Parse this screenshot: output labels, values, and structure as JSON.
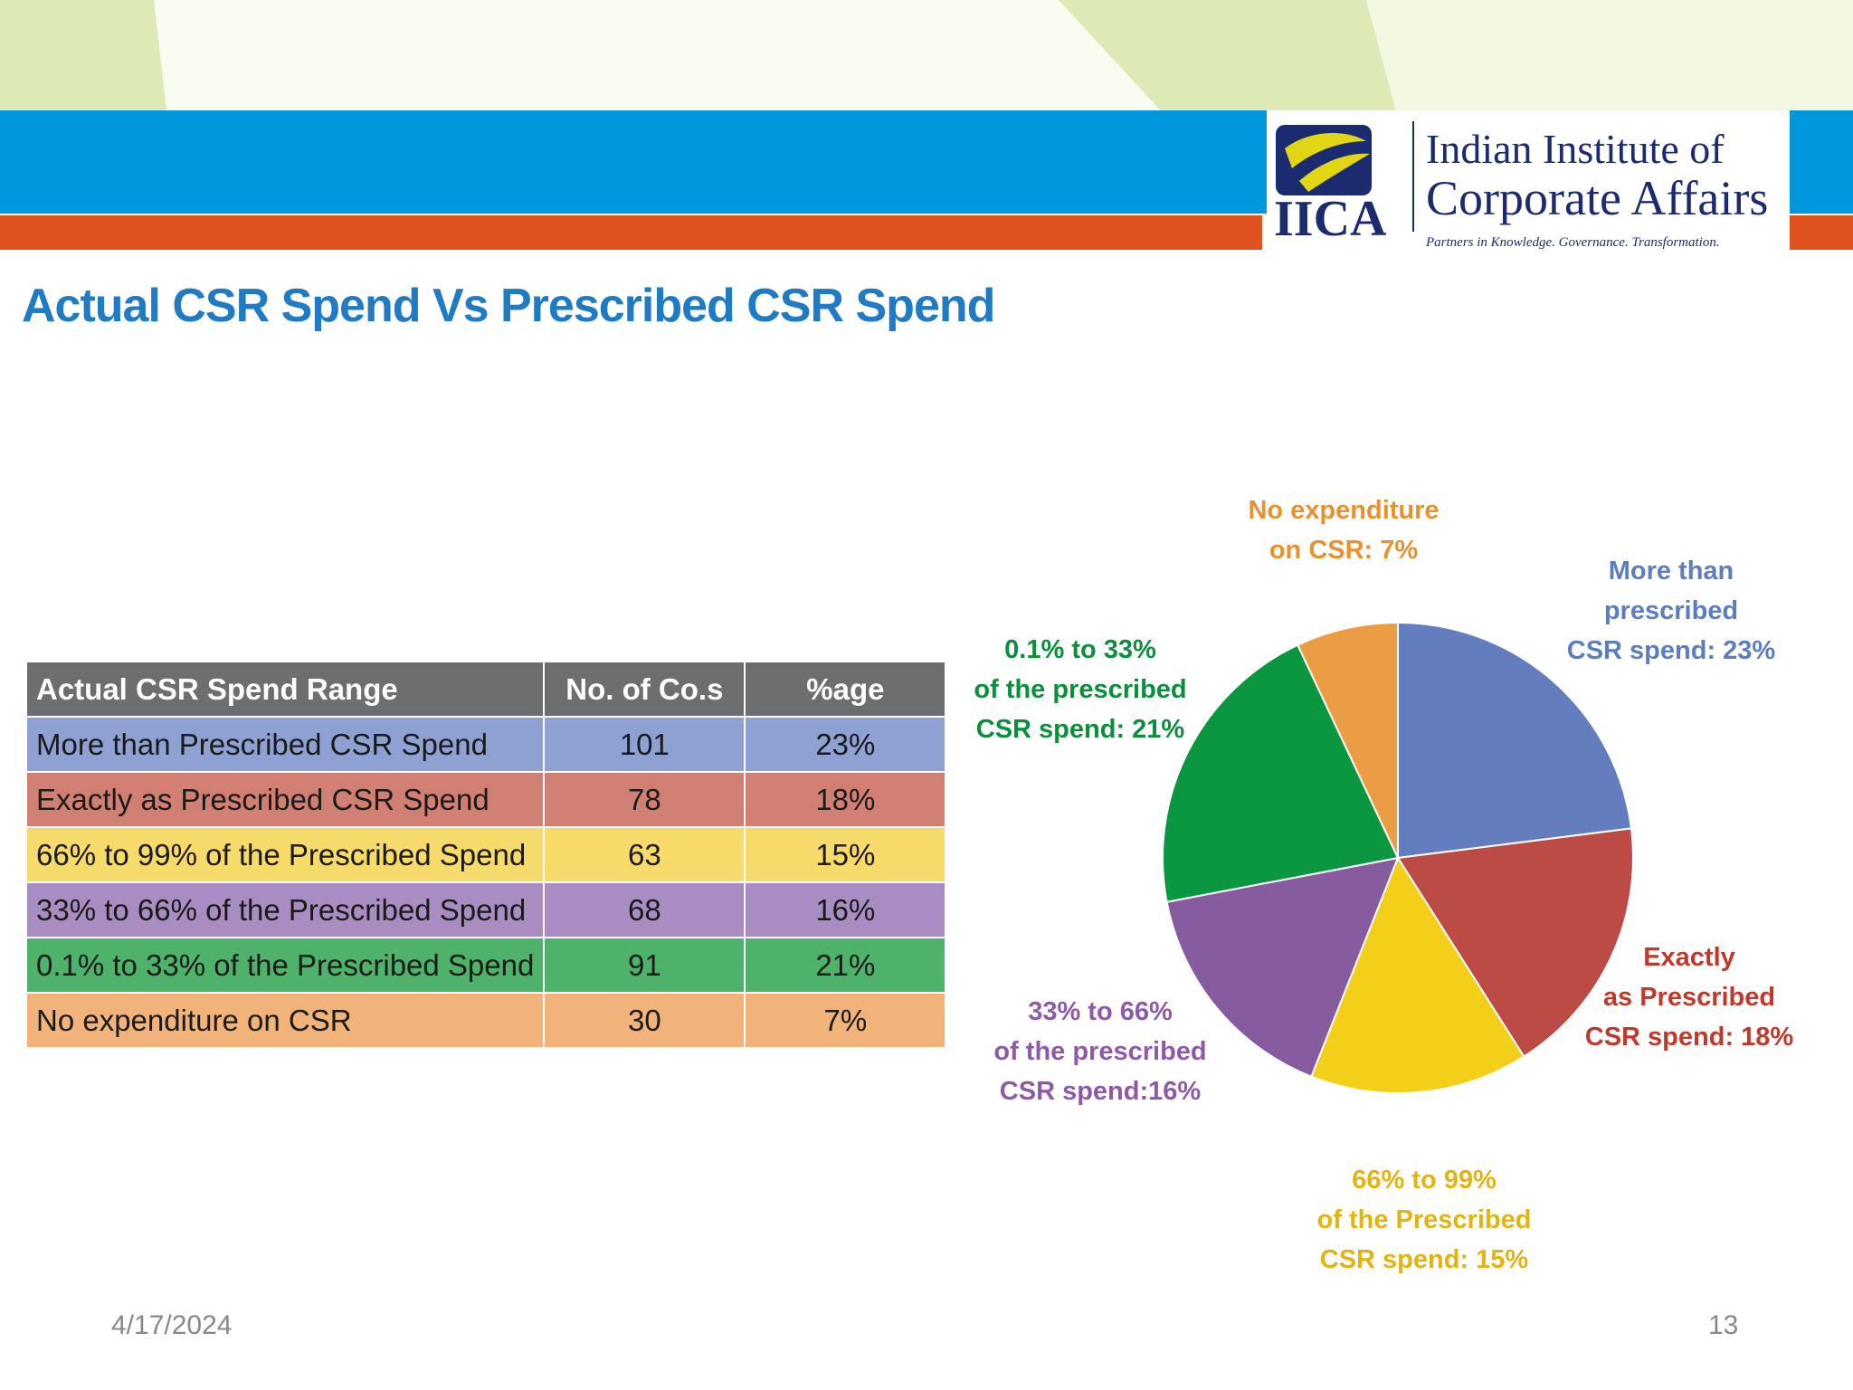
{
  "header": {
    "logo": {
      "abbr": "IICA",
      "line1": "Indian Institute of",
      "line2": "Corporate Affairs",
      "tagline": "Partners in Knowledge. Governance. Transformation."
    },
    "title": "Actual CSR Spend Vs Prescribed CSR Spend"
  },
  "table": {
    "headers": [
      "Actual CSR Spend Range",
      "No. of Co.s",
      "%age"
    ],
    "rows": [
      {
        "range": "More than Prescribed CSR Spend",
        "count": "101",
        "pct": "23%",
        "color": "#8FA0D3"
      },
      {
        "range": "Exactly as Prescribed CSR Spend",
        "count": "78",
        "pct": "18%",
        "color": "#D17F73"
      },
      {
        "range": "66% to 99% of the Prescribed Spend",
        "count": "63",
        "pct": "15%",
        "color": "#F6DB6B"
      },
      {
        "range": "33% to 66% of the Prescribed Spend",
        "count": "68",
        "pct": "16%",
        "color": "#A98CC1"
      },
      {
        "range": "0.1% to 33% of the Prescribed Spend",
        "count": "91",
        "pct": "21%",
        "color": "#4EB26B"
      },
      {
        "range": "No expenditure on CSR",
        "count": "30",
        "pct": "7%",
        "color": "#F2B37A"
      }
    ]
  },
  "chart_data": {
    "type": "pie",
    "title": "",
    "slices": [
      {
        "name": "More than prescribed CSR spend",
        "value": 23,
        "color": "#637DBF",
        "label_lines": [
          "More than",
          "prescribed",
          "CSR spend: 23%"
        ],
        "label_color": "#5C7EC0"
      },
      {
        "name": "Exactly as Prescribed CSR spend",
        "value": 18,
        "color": "#BC4B45",
        "label_lines": [
          "Exactly",
          "as Prescribed",
          "CSR spend: 18%"
        ],
        "label_color": "#C0392B"
      },
      {
        "name": "66% to 99% of the Prescribed CSR spend",
        "value": 15,
        "color": "#F3CF1A",
        "label_lines": [
          "66% to 99%",
          "of the Prescribed",
          "CSR spend: 15%"
        ],
        "label_color": "#E2B411"
      },
      {
        "name": "33% to 66% of the prescribed CSR spend",
        "value": 16,
        "color": "#875C9F",
        "label_lines": [
          "33% to 66%",
          "of the prescribed",
          "CSR spend:16%"
        ],
        "label_color": "#8E5AA8"
      },
      {
        "name": "0.1% to 33% of the prescribed CSR spend",
        "value": 21,
        "color": "#0A973F",
        "label_lines": [
          "0.1% to 33%",
          "of the prescribed",
          "CSR spend: 21%"
        ],
        "label_color": "#0A8F3A"
      },
      {
        "name": "No expenditure on CSR",
        "value": 7,
        "color": "#EB9D44",
        "label_lines": [
          "No expenditure",
          "on CSR: 7%"
        ],
        "label_color": "#E8912F"
      }
    ]
  },
  "footer": {
    "date": "4/17/2024",
    "page": "13"
  }
}
